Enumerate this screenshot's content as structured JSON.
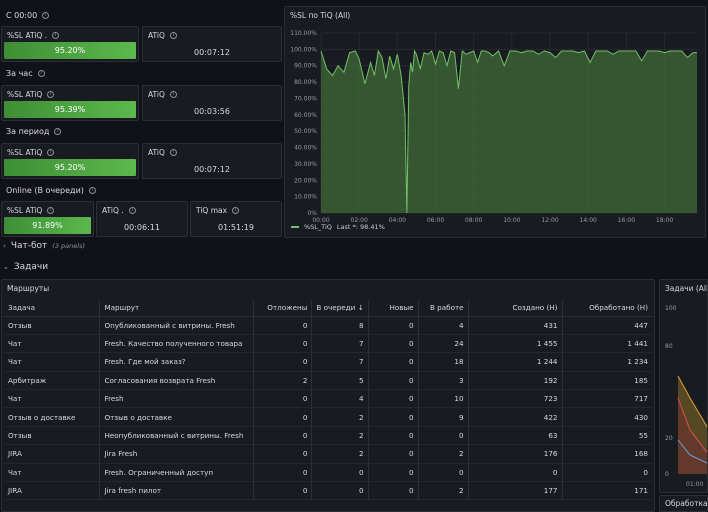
{
  "sections": {
    "today": "С 00:00",
    "hour": "За час",
    "period": "За период",
    "online": "Online (В очереди)"
  },
  "stats": {
    "today_sl": {
      "title": "%SL ATiQ .",
      "value": "95.20%"
    },
    "today_atiq": {
      "title": "ATiQ",
      "value": "00:07:12"
    },
    "hour_sl": {
      "title": "%SL ATiQ",
      "value": "95.39%"
    },
    "hour_atiq": {
      "title": "ATiQ",
      "value": "00:03:56"
    },
    "period_sl": {
      "title": "%SL ATiQ",
      "value": "95.20%"
    },
    "period_atiq": {
      "title": "ATiQ",
      "value": "00:07:12"
    },
    "online_sl": {
      "title": "%SL ATiQ",
      "value": "91.89%"
    },
    "online_atiq": {
      "title": "ATiQ .",
      "value": "00:06:11"
    },
    "online_tiq": {
      "title": "TiQ max",
      "value": "01:51:19"
    }
  },
  "timeseries": {
    "title": "%SL по TiQ (All)",
    "legend": "%SL_TiQ",
    "legend_last": "Last *: 98.41%",
    "color": "#73bf69"
  },
  "chart_data": {
    "type": "line",
    "title": "%SL по TiQ (All)",
    "y_ticks": [
      "0%",
      "10.00%",
      "20.00%",
      "30.00%",
      "40.00%",
      "50.00%",
      "60.00%",
      "70.00%",
      "80.00%",
      "90.00%",
      "100.00%",
      "110.00%"
    ],
    "x_ticks": [
      "00:00",
      "02:00",
      "04:00",
      "06:00",
      "08:00",
      "10:00",
      "12:00",
      "14:00",
      "16:00",
      "18:00"
    ],
    "ylim": [
      0,
      110
    ],
    "xlim": [
      0,
      19.7
    ],
    "series": [
      {
        "name": "%SL_TiQ",
        "x": [
          0,
          0.3,
          0.6,
          0.9,
          1.2,
          1.5,
          1.8,
          2.0,
          2.3,
          2.6,
          2.8,
          3.0,
          3.2,
          3.4,
          3.6,
          3.8,
          4.0,
          4.2,
          4.4,
          4.5,
          4.6,
          4.7,
          4.8,
          4.9,
          5.0,
          5.2,
          5.4,
          5.6,
          5.8,
          6.0,
          6.2,
          6.4,
          6.6,
          6.8,
          7.0,
          7.2,
          7.4,
          7.6,
          7.8,
          8.0,
          8.2,
          8.4,
          8.6,
          8.8,
          9.0,
          9.3,
          9.6,
          9.9,
          10.2,
          10.5,
          10.8,
          11.1,
          11.4,
          11.7,
          12.0,
          12.3,
          12.6,
          12.9,
          13.2,
          13.5,
          13.8,
          14.1,
          14.4,
          14.7,
          15.0,
          15.3,
          15.6,
          15.9,
          16.2,
          16.5,
          16.8,
          17.1,
          17.4,
          17.7,
          18.0,
          18.3,
          18.6,
          18.9,
          19.2,
          19.5,
          19.7
        ],
        "values": [
          99,
          88,
          84,
          90,
          86,
          98,
          99,
          94,
          79,
          92,
          84,
          99,
          95,
          82,
          96,
          88,
          97,
          84,
          60,
          0,
          78,
          92,
          86,
          99,
          97,
          88,
          98,
          97,
          99,
          91,
          99,
          98,
          90,
          99,
          98,
          76,
          99,
          97,
          98,
          99,
          92,
          99,
          99,
          98,
          96,
          99,
          90,
          99,
          99,
          98,
          99,
          99,
          97,
          99,
          98,
          95,
          99,
          99,
          99,
          98,
          99,
          92,
          99,
          99,
          99,
          97,
          99,
          99,
          99,
          99,
          93,
          99,
          99,
          99,
          98,
          99,
          99,
          99,
          95,
          98,
          98
        ]
      }
    ]
  },
  "row_chat": {
    "label": "Чат-бот",
    "sub": "(3 panels)"
  },
  "row_tasks": {
    "label": "Задачи"
  },
  "table": {
    "title": "Маршруты",
    "headers": [
      "Задача",
      "Маршрут",
      "Отложены",
      "В очереди ↓",
      "Новые",
      "В работе",
      "Создано (Н)",
      "Обработано (Н)"
    ],
    "rows": [
      [
        "Отзыв",
        "Опубликованный с витрины. Fresh",
        "0",
        "8",
        "0",
        "4",
        "431",
        "447"
      ],
      [
        "Чат",
        "Fresh. Качество полученного товара",
        "0",
        "7",
        "0",
        "24",
        "1 455",
        "1 441"
      ],
      [
        "Чат",
        "Fresh. Где мой заказ?",
        "0",
        "7",
        "0",
        "18",
        "1 244",
        "1 234"
      ],
      [
        "Арбитраж",
        "Согласования возврата Fresh",
        "2",
        "5",
        "0",
        "3",
        "192",
        "185"
      ],
      [
        "Чат",
        "Fresh",
        "0",
        "4",
        "0",
        "10",
        "723",
        "717"
      ],
      [
        "Отзыв о доставке",
        "Отзыв о доставке",
        "0",
        "2",
        "0",
        "9",
        "422",
        "430"
      ],
      [
        "Отзыв",
        "Неопубликованный с витрины. Fresh",
        "0",
        "2",
        "0",
        "0",
        "63",
        "55"
      ],
      [
        "JIRA",
        "Jira Fresh",
        "0",
        "2",
        "0",
        "2",
        "176",
        "168"
      ],
      [
        "Чат",
        "Fresh. Ограниченный доступ",
        "0",
        "0",
        "0",
        "0",
        "0",
        "0"
      ],
      [
        "JIRA",
        "Jira fresh пилот",
        "0",
        "0",
        "0",
        "2",
        "177",
        "171"
      ]
    ]
  },
  "side_panel": {
    "title": "Задачи (All)",
    "y_top": "100",
    "y_mid": "80",
    "y_low": "20",
    "y_zero": "0",
    "x_tick": "01:00"
  },
  "bottom_panel": {
    "title": "Обработка ч"
  }
}
